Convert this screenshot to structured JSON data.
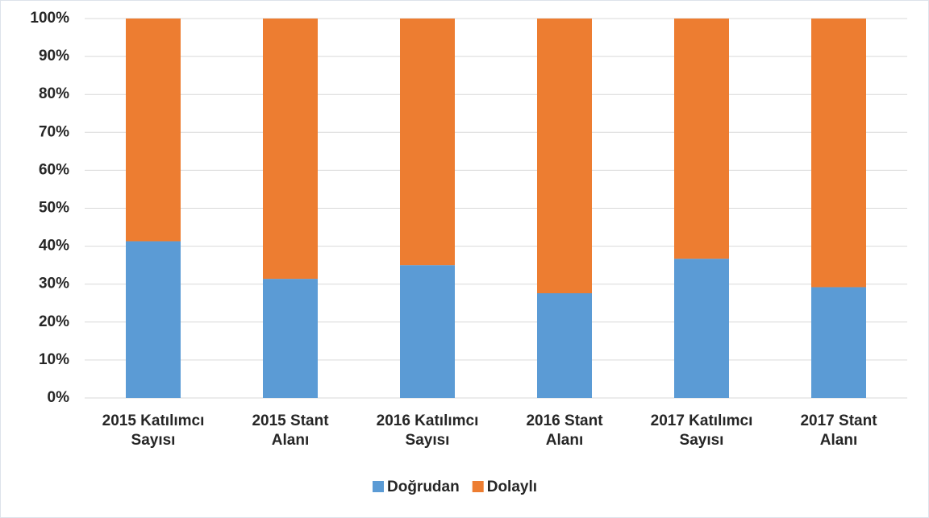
{
  "chart_data": {
    "type": "stacked_bar",
    "categories": [
      "2015 Katılımcı Sayısı",
      "2015 Stant Alanı",
      "2016 Katılımcı Sayısı",
      "2016 Stant Alanı",
      "2017 Katılımcı Sayısı",
      "2017 Stant Alanı"
    ],
    "series": [
      {
        "name": "Doğrudan",
        "color": "#5b9bd5",
        "values": [
          41.3,
          31.4,
          35,
          27.6,
          36.7,
          29.2
        ]
      },
      {
        "name": "Dolaylı",
        "color": "#ed7d31",
        "values": [
          58.7,
          68.6,
          65,
          72.4,
          63.3,
          70.8
        ]
      }
    ],
    "ylim": [
      0,
      100
    ],
    "yticks": [
      {
        "value": 0,
        "label": "0%"
      },
      {
        "value": 10,
        "label": "10%"
      },
      {
        "value": 20,
        "label": "20%"
      },
      {
        "value": 30,
        "label": "30%"
      },
      {
        "value": 40,
        "label": "40%"
      },
      {
        "value": 50,
        "label": "50%"
      },
      {
        "value": 60,
        "label": "60%"
      },
      {
        "value": 70,
        "label": "70%"
      },
      {
        "value": 80,
        "label": "80%"
      },
      {
        "value": 90,
        "label": "90%"
      },
      {
        "value": 100,
        "label": "100%"
      }
    ],
    "grid": true,
    "legend": "bottom"
  }
}
